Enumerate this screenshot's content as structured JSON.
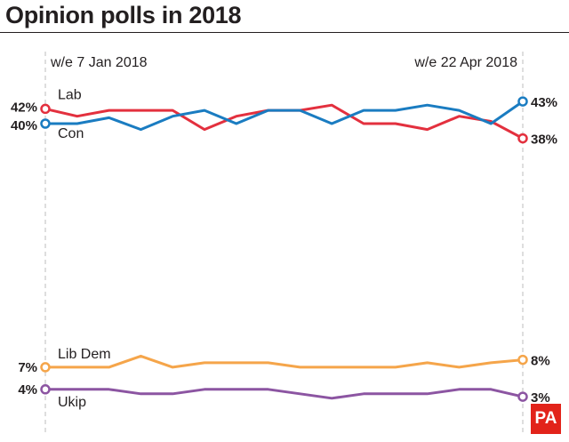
{
  "title": "Opinion polls in 2018",
  "logo_text": "PA",
  "chart_data": {
    "type": "line",
    "title": "Opinion polls in 2018",
    "x_start_label": "w/e 7 Jan 2018",
    "x_end_label": "w/e 22 Apr 2018",
    "x": [
      "w/e 7 Jan 2018",
      "",
      "",
      "",
      "",
      "",
      "",
      "",
      "",
      "",
      "",
      "",
      "",
      "",
      "",
      "w/e 22 Apr 2018"
    ],
    "ylim": [
      0,
      47
    ],
    "grid": false,
    "series": [
      {
        "name": "Lab",
        "color": "#e3303e",
        "values": [
          42,
          41,
          41.8,
          41.8,
          41.8,
          39.2,
          41,
          41.8,
          41.8,
          42.5,
          40,
          40,
          39.2,
          41,
          40.3,
          38
        ],
        "start_label": "42%",
        "end_label": "38%"
      },
      {
        "name": "Con",
        "color": "#1a7cc1",
        "values": [
          40,
          40,
          40.8,
          39.2,
          41,
          41.8,
          40,
          41.8,
          41.8,
          40,
          41.8,
          41.8,
          42.5,
          41.8,
          40,
          43
        ],
        "start_label": "40%",
        "end_label": "43%"
      },
      {
        "name": "Lib Dem",
        "color": "#f5a54a",
        "values": [
          7,
          7,
          7,
          8.5,
          7,
          7.6,
          7.6,
          7.6,
          7,
          7,
          7,
          7,
          7.6,
          7,
          7.6,
          8
        ],
        "start_label": "7%",
        "end_label": "8%"
      },
      {
        "name": "Ukip",
        "color": "#8c55a2",
        "values": [
          4,
          4,
          4,
          3.4,
          3.4,
          4,
          4,
          4,
          3.4,
          2.8,
          3.4,
          3.4,
          3.4,
          4,
          4,
          3
        ],
        "start_label": "4%",
        "end_label": "3%"
      }
    ]
  }
}
